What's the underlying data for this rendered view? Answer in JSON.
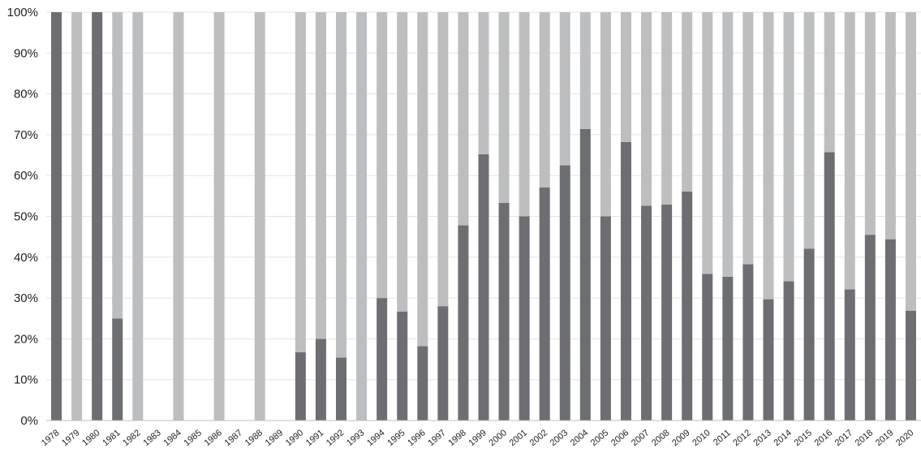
{
  "chart_data": {
    "type": "bar",
    "stacked": true,
    "percent_stacked": true,
    "title": "",
    "xlabel": "",
    "ylabel": "",
    "ylim": [
      0,
      100
    ],
    "yticks": [
      "0%",
      "10%",
      "20%",
      "30%",
      "40%",
      "50%",
      "60%",
      "70%",
      "80%",
      "90%",
      "100%"
    ],
    "grid": "horizontal",
    "legend": "none",
    "categories": [
      "1978",
      "1979",
      "1980",
      "1981",
      "1982",
      "1983",
      "1984",
      "1985",
      "1986",
      "1987",
      "1988",
      "1989",
      "1990",
      "1991",
      "1992",
      "1993",
      "1994",
      "1995",
      "1996",
      "1997",
      "1998",
      "1999",
      "2000",
      "2001",
      "2002",
      "2003",
      "2004",
      "2005",
      "2006",
      "2007",
      "2008",
      "2009",
      "2010",
      "2011",
      "2012",
      "2013",
      "2014",
      "2015",
      "2016",
      "2017",
      "2018",
      "2019",
      "2020"
    ],
    "series": [
      {
        "color": "#6d6e71",
        "values": [
          100,
          0,
          100,
          25,
          0,
          0,
          0,
          0,
          0,
          0,
          0,
          0,
          16.7,
          20,
          15.4,
          0,
          30,
          26.7,
          18.2,
          28,
          47.8,
          65.2,
          53.3,
          50,
          57.1,
          62.5,
          71.4,
          50,
          68.2,
          52.6,
          52.9,
          56.1,
          35.9,
          35.2,
          38.3,
          29.7,
          34.1,
          42.1,
          65.7,
          32.1,
          45.5,
          44.4,
          26.9
        ]
      },
      {
        "color": "#bcbec0",
        "values": [
          0,
          100,
          0,
          75,
          100,
          0,
          100,
          0,
          100,
          0,
          100,
          0,
          83.3,
          80,
          84.6,
          100,
          70,
          73.3,
          81.8,
          72,
          52.2,
          34.8,
          46.7,
          50,
          42.9,
          37.5,
          28.6,
          50,
          31.8,
          47.4,
          47.1,
          43.9,
          64.1,
          64.8,
          61.7,
          70.3,
          65.9,
          57.9,
          34.3,
          67.9,
          54.5,
          55.6,
          73.1
        ]
      }
    ]
  }
}
